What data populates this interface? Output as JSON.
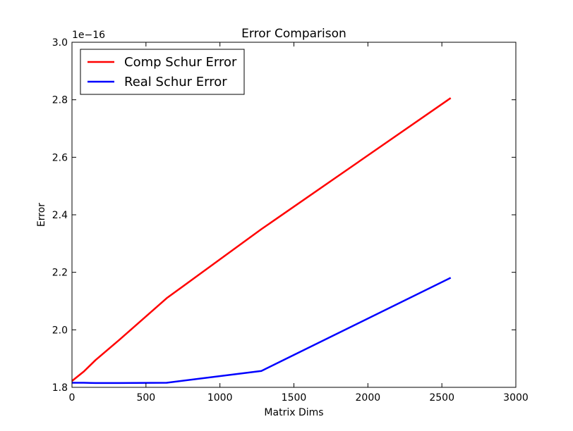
{
  "chart_data": {
    "type": "line",
    "title": "Error Comparison",
    "xlabel": "Matrix Dims",
    "ylabel": "Error",
    "offset_text": "1e−16",
    "xlim": [
      0,
      3000
    ],
    "ylim": [
      1.8,
      3.0
    ],
    "xticks": [
      0,
      500,
      1000,
      1500,
      2000,
      2500,
      3000
    ],
    "yticks": [
      1.8,
      2.0,
      2.2,
      2.4,
      2.6,
      2.8,
      3.0
    ],
    "xtick_labels": [
      "0",
      "500",
      "1000",
      "1500",
      "2000",
      "2500",
      "3000"
    ],
    "ytick_labels": [
      "1.8",
      "2.0",
      "2.2",
      "2.4",
      "2.6",
      "2.8",
      "3.0"
    ],
    "legend_position": "top-left",
    "grid": false,
    "series": [
      {
        "name": "Comp Schur Error",
        "color": "#ff0000",
        "x": [
          0,
          80,
          160,
          320,
          640,
          1280,
          2560
        ],
        "y": [
          1.822,
          1.855,
          1.895,
          1.965,
          2.11,
          2.35,
          2.806
        ]
      },
      {
        "name": "Real Schur Error",
        "color": "#0000ff",
        "x": [
          0,
          80,
          160,
          320,
          640,
          1280,
          2560
        ],
        "y": [
          1.816,
          1.816,
          1.815,
          1.815,
          1.816,
          1.857,
          2.181
        ]
      }
    ]
  }
}
